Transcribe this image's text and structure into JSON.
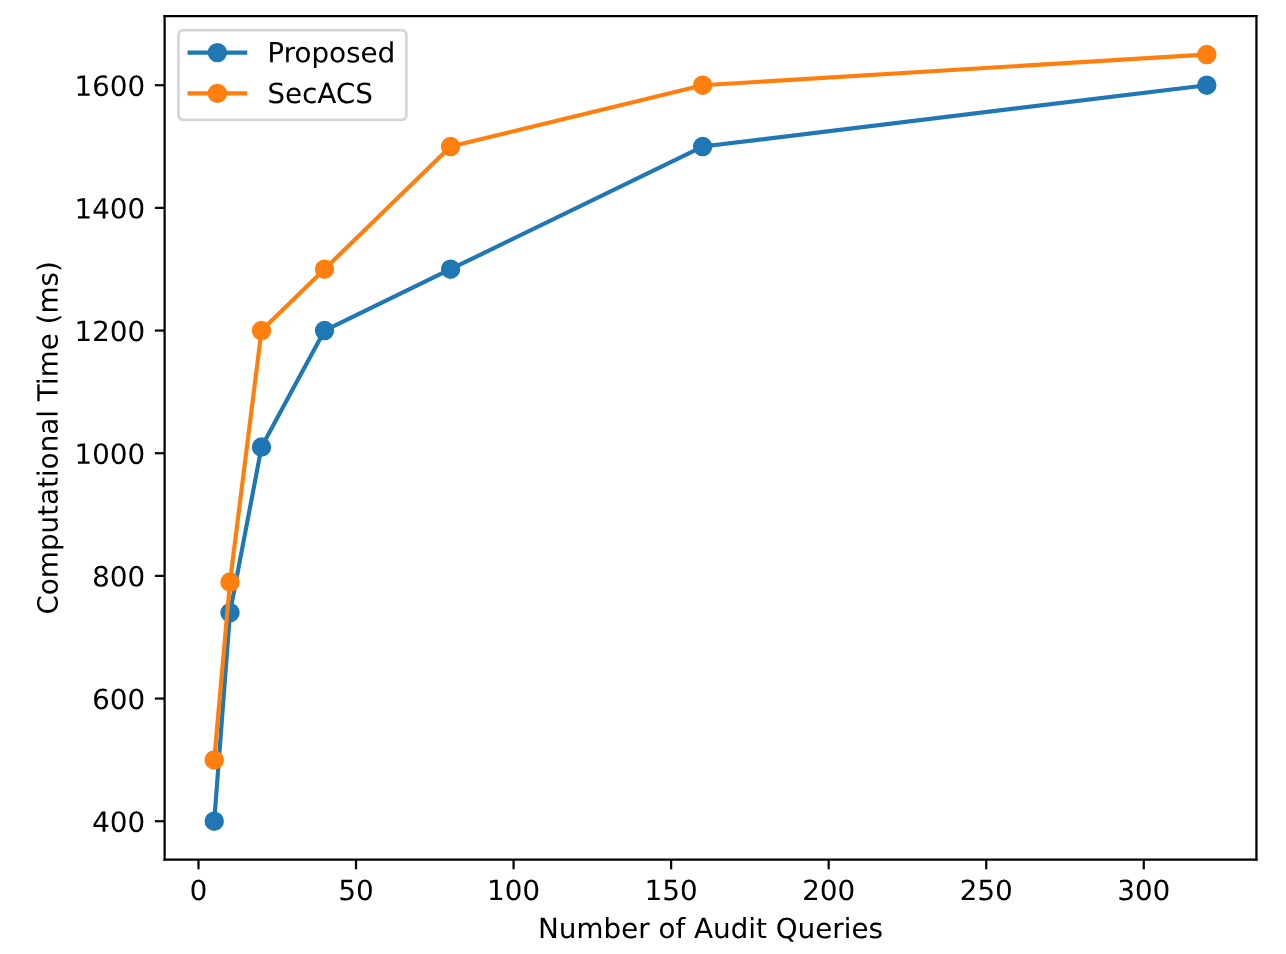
{
  "chart_data": {
    "type": "line",
    "xlabel": "Number of Audit Queries",
    "ylabel": "Computational Time (ms)",
    "x": [
      5,
      10,
      20,
      40,
      80,
      160,
      320
    ],
    "series": [
      {
        "name": "Proposed",
        "color": "#1f77b4",
        "values": [
          400,
          740,
          1010,
          1200,
          1300,
          1500,
          1600
        ]
      },
      {
        "name": "SecACS",
        "color": "#ff7f0e",
        "values": [
          500,
          790,
          1200,
          1300,
          1500,
          1600,
          1650
        ]
      }
    ],
    "xlim": [
      -10.75,
      335.75
    ],
    "xticks": [
      0,
      50,
      100,
      150,
      200,
      250,
      300
    ],
    "ylim": [
      337.5,
      1712.5
    ],
    "yticks": [
      400,
      600,
      800,
      1000,
      1200,
      1400,
      1600
    ],
    "marker": "circle",
    "line_style": "solid",
    "legend": "top left",
    "grid": false
  }
}
